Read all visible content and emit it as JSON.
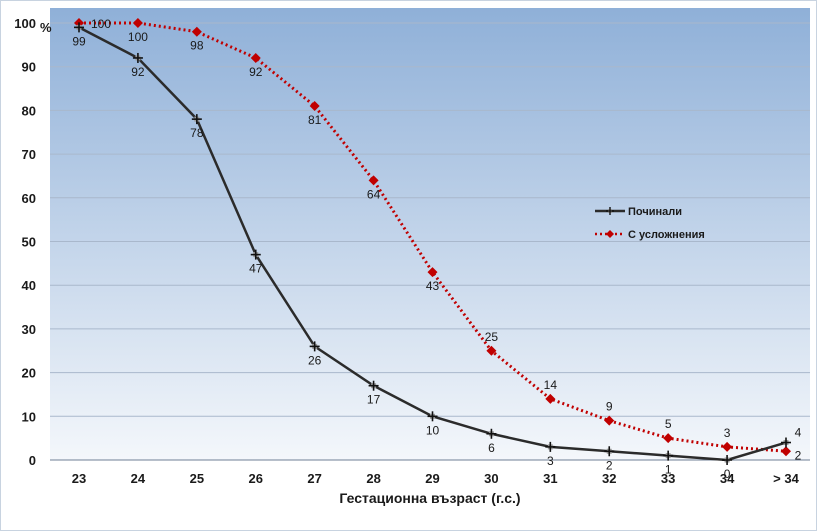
{
  "chart_data": {
    "type": "line",
    "categories": [
      "23",
      "24",
      "25",
      "26",
      "27",
      "28",
      "29",
      "30",
      "31",
      "32",
      "33",
      "34",
      "> 34"
    ],
    "ylabel": "%",
    "xlabel": "Гестационна възраст (г.с.)",
    "ylim": [
      0,
      100
    ],
    "yticks": [
      0,
      10,
      20,
      30,
      40,
      50,
      60,
      70,
      80,
      90,
      100
    ],
    "grid": true,
    "legend_position": "right",
    "series": [
      {
        "name": "Починали",
        "values": [
          99,
          92,
          78,
          47,
          26,
          17,
          10,
          6,
          3,
          2,
          1,
          0,
          4
        ],
        "color": "#2b2b2b",
        "marker": "cross",
        "line": "solid"
      },
      {
        "name": "С усложнения",
        "values": [
          100,
          100,
          98,
          92,
          81,
          64,
          43,
          25,
          14,
          9,
          5,
          3,
          2
        ],
        "color": "#c00000",
        "marker": "diamond",
        "line": "dotted"
      }
    ],
    "colors": {
      "plot_bg_top": "#8fb0d8",
      "plot_bg_bottom": "#f4f7fb",
      "grid": "#a9b8cc"
    }
  }
}
